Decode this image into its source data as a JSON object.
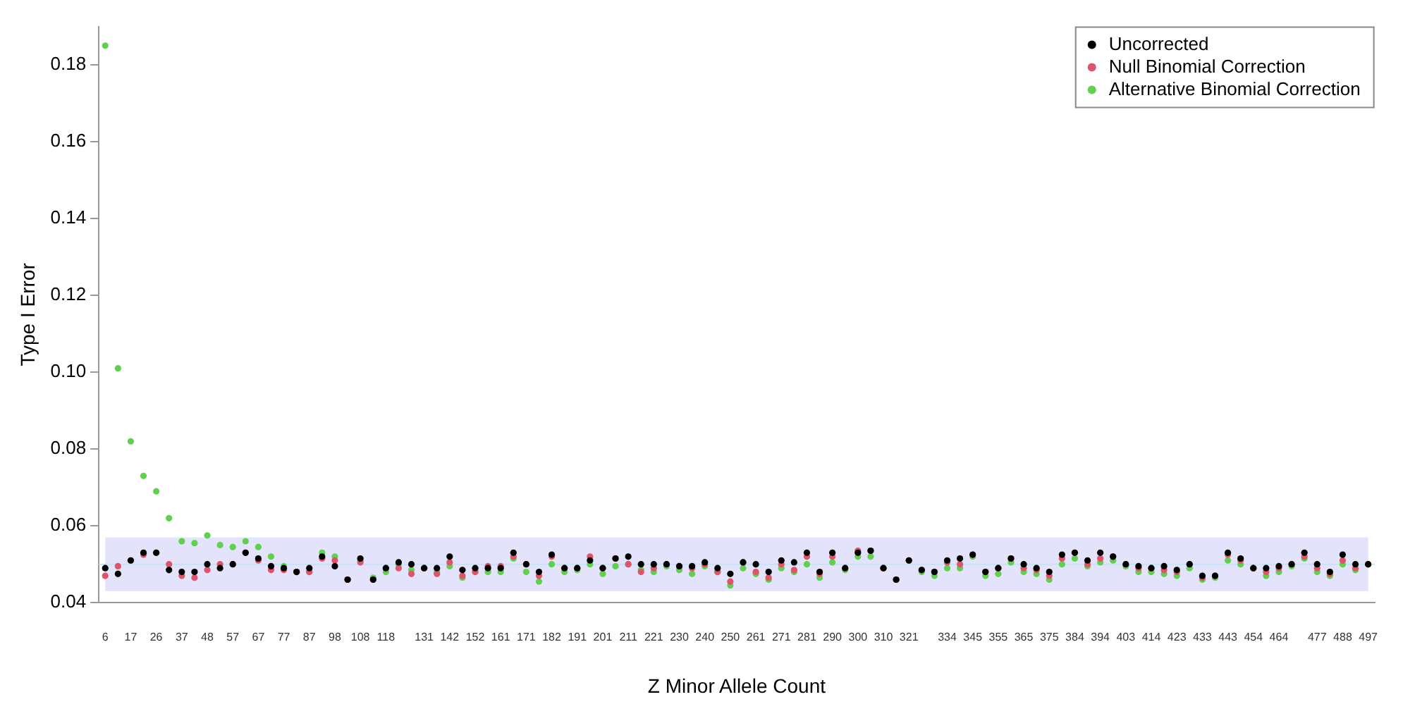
{
  "chart_data": {
    "type": "scatter",
    "xlabel": "Z Minor Allele Count",
    "ylabel": "Type I Error",
    "categories": [
      "6",
      null,
      "17",
      null,
      "26",
      null,
      "37",
      null,
      "48",
      null,
      "57",
      null,
      "67",
      null,
      "77",
      null,
      "87",
      null,
      "98",
      null,
      "108",
      null,
      "118",
      null,
      null,
      "131",
      null,
      "142",
      null,
      "152",
      null,
      "161",
      null,
      "171",
      null,
      "182",
      null,
      "191",
      null,
      "201",
      null,
      "211",
      null,
      "221",
      null,
      "230",
      null,
      "240",
      null,
      "250",
      null,
      "261",
      null,
      "271",
      null,
      "281",
      null,
      "290",
      null,
      "300",
      null,
      "310",
      null,
      "321",
      null,
      null,
      "334",
      null,
      "345",
      null,
      "355",
      null,
      "365",
      null,
      "375",
      null,
      "384",
      null,
      "394",
      null,
      "403",
      null,
      "414",
      null,
      "423",
      null,
      "433",
      null,
      "443",
      null,
      "454",
      null,
      "464",
      null,
      null,
      "477",
      null,
      "488",
      null,
      "497"
    ],
    "series": [
      {
        "name": "Uncorrected",
        "color": "#000000",
        "values": [
          0.049,
          0.0475,
          0.051,
          0.053,
          0.053,
          0.0485,
          0.048,
          0.048,
          0.05,
          0.049,
          0.05,
          0.053,
          0.0515,
          0.0495,
          0.049,
          0.048,
          0.049,
          0.052,
          0.0495,
          0.046,
          0.0515,
          0.046,
          0.049,
          0.0505,
          0.05,
          0.049,
          0.049,
          0.052,
          0.0485,
          0.049,
          0.049,
          0.049,
          0.053,
          0.05,
          0.048,
          0.0525,
          0.049,
          0.049,
          0.051,
          0.049,
          0.0515,
          0.052,
          0.05,
          0.05,
          0.05,
          0.0495,
          0.0495,
          0.0505,
          0.049,
          0.0475,
          0.0505,
          0.05,
          0.048,
          0.051,
          0.0505,
          0.053,
          0.048,
          0.053,
          0.049,
          0.053,
          0.0535,
          0.049,
          0.046,
          0.051,
          0.0485,
          0.048,
          0.051,
          0.0515,
          0.0525,
          0.048,
          0.049,
          0.0515,
          0.05,
          0.049,
          0.048,
          0.0525,
          0.053,
          0.051,
          0.053,
          0.052,
          0.05,
          0.0495,
          0.049,
          0.0495,
          0.0485,
          0.05,
          0.047,
          0.047,
          0.053,
          0.0515,
          0.049,
          0.049,
          0.0495,
          0.05,
          0.053,
          0.05,
          0.048,
          0.0525,
          0.05,
          0.05
        ]
      },
      {
        "name": "Null Binomial Correction",
        "color": "#df536b",
        "values": [
          0.047,
          0.0495,
          0.051,
          0.0525,
          0.053,
          0.05,
          0.047,
          0.0465,
          0.0485,
          0.05,
          0.05,
          0.053,
          0.051,
          0.0485,
          0.0485,
          0.048,
          0.048,
          0.0515,
          0.051,
          0.046,
          0.0505,
          0.046,
          0.049,
          0.049,
          0.0475,
          0.049,
          0.0475,
          0.0505,
          0.047,
          0.048,
          0.0495,
          0.0495,
          0.052,
          0.05,
          0.047,
          0.052,
          0.049,
          0.049,
          0.052,
          0.049,
          0.0515,
          0.05,
          0.048,
          0.049,
          0.05,
          0.0495,
          0.049,
          0.05,
          0.048,
          0.0455,
          0.0505,
          0.048,
          0.0465,
          0.05,
          0.0485,
          0.052,
          0.0475,
          0.052,
          0.049,
          0.0535,
          0.0535,
          0.049,
          0.046,
          0.051,
          0.0485,
          0.048,
          0.0505,
          0.05,
          0.0525,
          0.048,
          0.049,
          0.0515,
          0.049,
          0.0485,
          0.047,
          0.0515,
          0.053,
          0.05,
          0.0515,
          0.052,
          0.05,
          0.049,
          0.049,
          0.0485,
          0.048,
          0.05,
          0.0465,
          0.047,
          0.0525,
          0.051,
          0.049,
          0.048,
          0.049,
          0.05,
          0.052,
          0.049,
          0.0475,
          0.051,
          0.049,
          0.05
        ]
      },
      {
        "name": "Alternative Binomial Correction",
        "color": "#61d04f",
        "values": [
          0.185,
          0.101,
          0.082,
          0.073,
          0.069,
          0.062,
          0.056,
          0.0555,
          0.0575,
          0.055,
          0.0545,
          0.056,
          0.0545,
          0.052,
          0.0495,
          0.048,
          0.048,
          0.053,
          0.052,
          0.046,
          0.051,
          0.0465,
          0.048,
          0.05,
          0.0485,
          0.049,
          0.048,
          0.0495,
          0.0465,
          0.048,
          0.048,
          0.048,
          0.0515,
          0.048,
          0.0455,
          0.05,
          0.048,
          0.0485,
          0.05,
          0.0475,
          0.0495,
          0.05,
          0.0485,
          0.048,
          0.0495,
          0.0485,
          0.0475,
          0.0495,
          0.048,
          0.0445,
          0.049,
          0.0475,
          0.046,
          0.049,
          0.048,
          0.05,
          0.0465,
          0.0505,
          0.0485,
          0.052,
          0.052,
          0.049,
          0.046,
          0.051,
          0.048,
          0.047,
          0.049,
          0.049,
          0.052,
          0.047,
          0.0475,
          0.0505,
          0.048,
          0.0475,
          0.046,
          0.05,
          0.0515,
          0.0495,
          0.0505,
          0.051,
          0.0495,
          0.048,
          0.048,
          0.0475,
          0.047,
          0.049,
          0.046,
          0.0465,
          0.051,
          0.05,
          0.049,
          0.047,
          0.048,
          0.0495,
          0.0515,
          0.048,
          0.047,
          0.05,
          0.0485,
          0.05
        ]
      }
    ],
    "ylim": [
      0.04,
      0.19
    ],
    "yticks": [
      0.04,
      0.06,
      0.08,
      {
        "value": 0.1,
        "label": "0.10"
      },
      0.12,
      0.14,
      0.16,
      0.18
    ],
    "bands": [
      {
        "axis": "y",
        "from": 0.043,
        "to": 0.057,
        "color": "#e3e3fb"
      }
    ],
    "ref_lines": [
      {
        "axis": "y",
        "value": 0.05,
        "color": "#c6e2f5"
      }
    ],
    "marker": "circle",
    "grid": false,
    "legend": "top right"
  }
}
